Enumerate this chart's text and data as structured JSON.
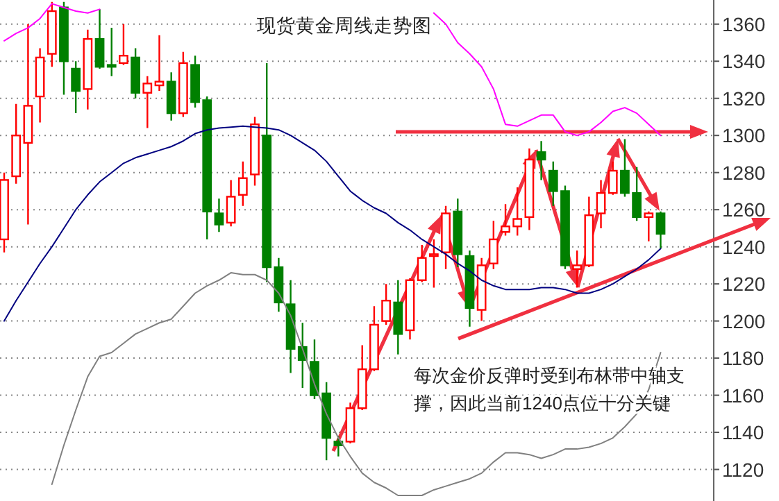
{
  "chart_data": {
    "type": "candlestick",
    "title": "现货黄金周线走势图",
    "annotations": [
      "每次金价反弹时受到布林带中轴支撑，因此当前1240点位十分关键"
    ],
    "categories": [
      null,
      null,
      null,
      null,
      null,
      null,
      null,
      null,
      null,
      null,
      null,
      null,
      null,
      null,
      null,
      null,
      null,
      null,
      null,
      null,
      null,
      null,
      null,
      null,
      null,
      null,
      null,
      null,
      null,
      null,
      null,
      null,
      null,
      null,
      null,
      null,
      null,
      null,
      null,
      null,
      null,
      null,
      null,
      null,
      null,
      null,
      null,
      null,
      null,
      null,
      null,
      null,
      null,
      null,
      null,
      null
    ],
    "ohlc": [
      [
        1244,
        1280,
        1237,
        1276
      ],
      [
        1278,
        1317,
        1274,
        1300
      ],
      [
        1296,
        1360,
        1252,
        1316
      ],
      [
        1321,
        1347,
        1307,
        1342
      ],
      [
        1344,
        1372,
        1337,
        1367
      ],
      [
        1369,
        1372,
        1322,
        1340
      ],
      [
        1336,
        1340,
        1312,
        1324
      ],
      [
        1325,
        1357,
        1314,
        1352
      ],
      [
        1352,
        1368,
        1336,
        1337
      ],
      [
        1338,
        1358,
        1332,
        1337
      ],
      [
        1339,
        1360,
        1338,
        1343
      ],
      [
        1342,
        1347,
        1320,
        1323
      ],
      [
        1323,
        1332,
        1304,
        1328
      ],
      [
        1327,
        1354,
        1324,
        1329
      ],
      [
        1329,
        1334,
        1308,
        1312
      ],
      [
        1312,
        1345,
        1310,
        1339
      ],
      [
        1338,
        1343,
        1315,
        1318
      ],
      [
        1319,
        1321,
        1244,
        1259
      ],
      [
        1258,
        1266,
        1248,
        1252
      ],
      [
        1253,
        1276,
        1251,
        1267
      ],
      [
        1268,
        1286,
        1262,
        1277
      ],
      [
        1279,
        1310,
        1273,
        1306
      ],
      [
        1300,
        1339,
        1221,
        1229
      ],
      [
        1229,
        1234,
        1205,
        1210
      ],
      [
        1209,
        1222,
        1172,
        1185
      ],
      [
        1186,
        1199,
        1164,
        1179
      ],
      [
        1178,
        1190,
        1158,
        1160
      ],
      [
        1161,
        1167,
        1125,
        1137
      ],
      [
        1135,
        1138,
        1127,
        1133
      ],
      [
        1135,
        1156,
        1134,
        1153
      ],
      [
        1153,
        1187,
        1152,
        1174
      ],
      [
        1174,
        1208,
        1173,
        1198
      ],
      [
        1200,
        1220,
        1198,
        1211
      ],
      [
        1210,
        1222,
        1182,
        1193
      ],
      [
        1195,
        1223,
        1190,
        1222
      ],
      [
        1222,
        1241,
        1221,
        1234
      ],
      [
        1235,
        1244,
        1218,
        1236
      ],
      [
        1237,
        1262,
        1228,
        1258
      ],
      [
        1259,
        1266,
        1229,
        1236
      ],
      [
        1235,
        1238,
        1197,
        1207
      ],
      [
        1206,
        1234,
        1200,
        1230
      ],
      [
        1231,
        1254,
        1228,
        1244
      ],
      [
        1248,
        1263,
        1246,
        1251
      ],
      [
        1251,
        1272,
        1246,
        1255
      ],
      [
        1256,
        1293,
        1249,
        1287
      ],
      [
        1291,
        1297,
        1276,
        1287
      ],
      [
        1281,
        1286,
        1262,
        1270
      ],
      [
        1270,
        1273,
        1228,
        1230
      ],
      [
        1228,
        1238,
        1218,
        1230
      ],
      [
        1230,
        1267,
        1229,
        1257
      ],
      [
        1258,
        1276,
        1250,
        1269
      ],
      [
        1269,
        1286,
        1268,
        1281
      ],
      [
        1281,
        1298,
        1267,
        1269
      ],
      [
        1269,
        1283,
        1254,
        1256
      ],
      [
        1256,
        1259,
        1243,
        1258
      ],
      [
        1258,
        1259,
        1239,
        1247
      ]
    ],
    "colors": [
      "#ff0000",
      "#ff0000",
      "#ff0000",
      "#ff0000",
      "#ff0000",
      "#008000",
      "#008000",
      "#ff0000",
      "#008000",
      "#008000",
      "#ff0000",
      "#008000",
      "#ff0000",
      "#ff0000",
      "#008000",
      "#ff0000",
      "#008000",
      "#008000",
      "#008000",
      "#ff0000",
      "#ff0000",
      "#ff0000",
      "#008000",
      "#008000",
      "#008000",
      "#008000",
      "#008000",
      "#008000",
      "#008000",
      "#ff0000",
      "#ff0000",
      "#ff0000",
      "#ff0000",
      "#008000",
      "#ff0000",
      "#ff0000",
      "#ff0000",
      "#ff0000",
      "#008000",
      "#008000",
      "#ff0000",
      "#ff0000",
      "#ff0000",
      "#ff0000",
      "#ff0000",
      "#008000",
      "#008000",
      "#008000",
      "#ff0000",
      "#ff0000",
      "#ff0000",
      "#ff0000",
      "#008000",
      "#008000",
      "#ff0000",
      "#008000"
    ],
    "series": [
      {
        "type": "line",
        "color": "#000080",
        "values": [
          1200,
          1211,
          1221,
          1231,
          1240,
          1250,
          1260,
          1268,
          1275,
          1280,
          1285,
          1288,
          1290,
          1292,
          1294,
          1297,
          1301,
          1303,
          1304,
          1304.5,
          1305,
          1304.5,
          1304,
          1303,
          1300,
          1296,
          1292,
          1286,
          1278,
          1270,
          1265,
          1261,
          1258,
          1253,
          1249,
          1244,
          1240,
          1236,
          1231,
          1227,
          1222,
          1219,
          1217,
          1217,
          1217,
          1218,
          1218,
          1217,
          1215,
          1215,
          1217,
          1220,
          1224,
          1228,
          1233,
          1239
        ]
      },
      {
        "type": "line",
        "color": "#ff00ff",
        "values": [
          1351,
          1355,
          1358,
          1363,
          1371,
          1369,
          1367,
          1366,
          1368,
          null,
          null,
          null,
          null,
          null,
          null,
          null,
          null,
          null,
          null,
          null,
          null,
          null,
          null,
          null,
          null,
          null,
          null,
          null,
          null,
          null,
          null,
          null,
          null,
          null,
          null,
          null,
          1366,
          1360,
          1350,
          1344,
          1337,
          1325,
          1306,
          1305,
          1308,
          1311,
          1311,
          1302,
          1300,
          1302,
          1307,
          1313,
          1315,
          1312,
          1306,
          1300
        ]
      },
      {
        "type": "line",
        "color": "#808080",
        "values": [
          null,
          null,
          null,
          null,
          1112,
          1133,
          1152,
          1170,
          1181,
          1183,
          1188,
          1193,
          1196,
          1199,
          1201,
          1208,
          1215,
          1219,
          1222,
          1226,
          1225,
          1225,
          1222,
          1215,
          1203,
          1185,
          1166,
          1150,
          1137,
          1127,
          1118,
          1113,
          1110,
          1106,
          1106,
          1106,
          1109,
          1111,
          1113,
          1115,
          1118,
          1124,
          1129,
          1129,
          1128,
          1126,
          1128,
          1131,
          1131,
          1132,
          1134,
          1137,
          1143,
          1150,
          1163,
          1183
        ]
      }
    ],
    "ylim": [
      1103,
      1373
    ],
    "yticks": [
      1120,
      1140,
      1160,
      1180,
      1200,
      1220,
      1240,
      1260,
      1280,
      1300,
      1320,
      1340,
      1360
    ],
    "grid": "y"
  }
}
